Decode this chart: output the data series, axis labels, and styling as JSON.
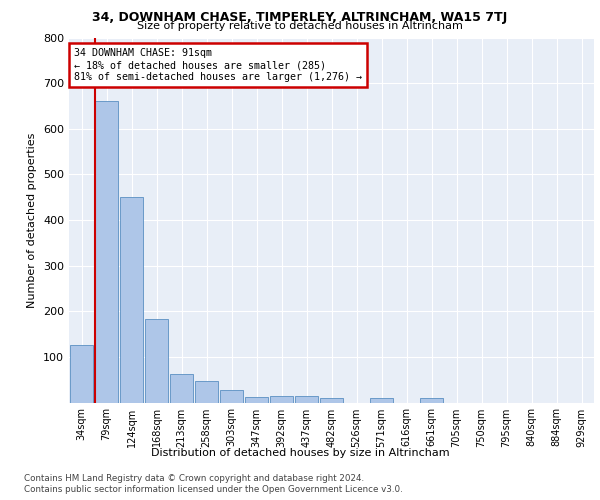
{
  "title": "34, DOWNHAM CHASE, TIMPERLEY, ALTRINCHAM, WA15 7TJ",
  "subtitle": "Size of property relative to detached houses in Altrincham",
  "xlabel": "Distribution of detached houses by size in Altrincham",
  "ylabel": "Number of detached properties",
  "bar_labels": [
    "34sqm",
    "79sqm",
    "124sqm",
    "168sqm",
    "213sqm",
    "258sqm",
    "303sqm",
    "347sqm",
    "392sqm",
    "437sqm",
    "482sqm",
    "526sqm",
    "571sqm",
    "616sqm",
    "661sqm",
    "705sqm",
    "750sqm",
    "795sqm",
    "840sqm",
    "884sqm",
    "929sqm"
  ],
  "bar_values": [
    125,
    660,
    450,
    183,
    62,
    47,
    27,
    12,
    15,
    15,
    9,
    0,
    9,
    0,
    9,
    0,
    0,
    0,
    0,
    0,
    0
  ],
  "bar_color": "#aec6e8",
  "bar_edge_color": "#5a8fc2",
  "property_line_label": "34 DOWNHAM CHASE: 91sqm",
  "annotation_line1": "← 18% of detached houses are smaller (285)",
  "annotation_line2": "81% of semi-detached houses are larger (1,276) →",
  "annotation_box_color": "#ffffff",
  "annotation_box_edge": "#cc0000",
  "ylim": [
    0,
    800
  ],
  "yticks": [
    0,
    100,
    200,
    300,
    400,
    500,
    600,
    700,
    800
  ],
  "bg_color": "#e8eef7",
  "grid_color": "#ffffff",
  "footer_line1": "Contains HM Land Registry data © Crown copyright and database right 2024.",
  "footer_line2": "Contains public sector information licensed under the Open Government Licence v3.0."
}
